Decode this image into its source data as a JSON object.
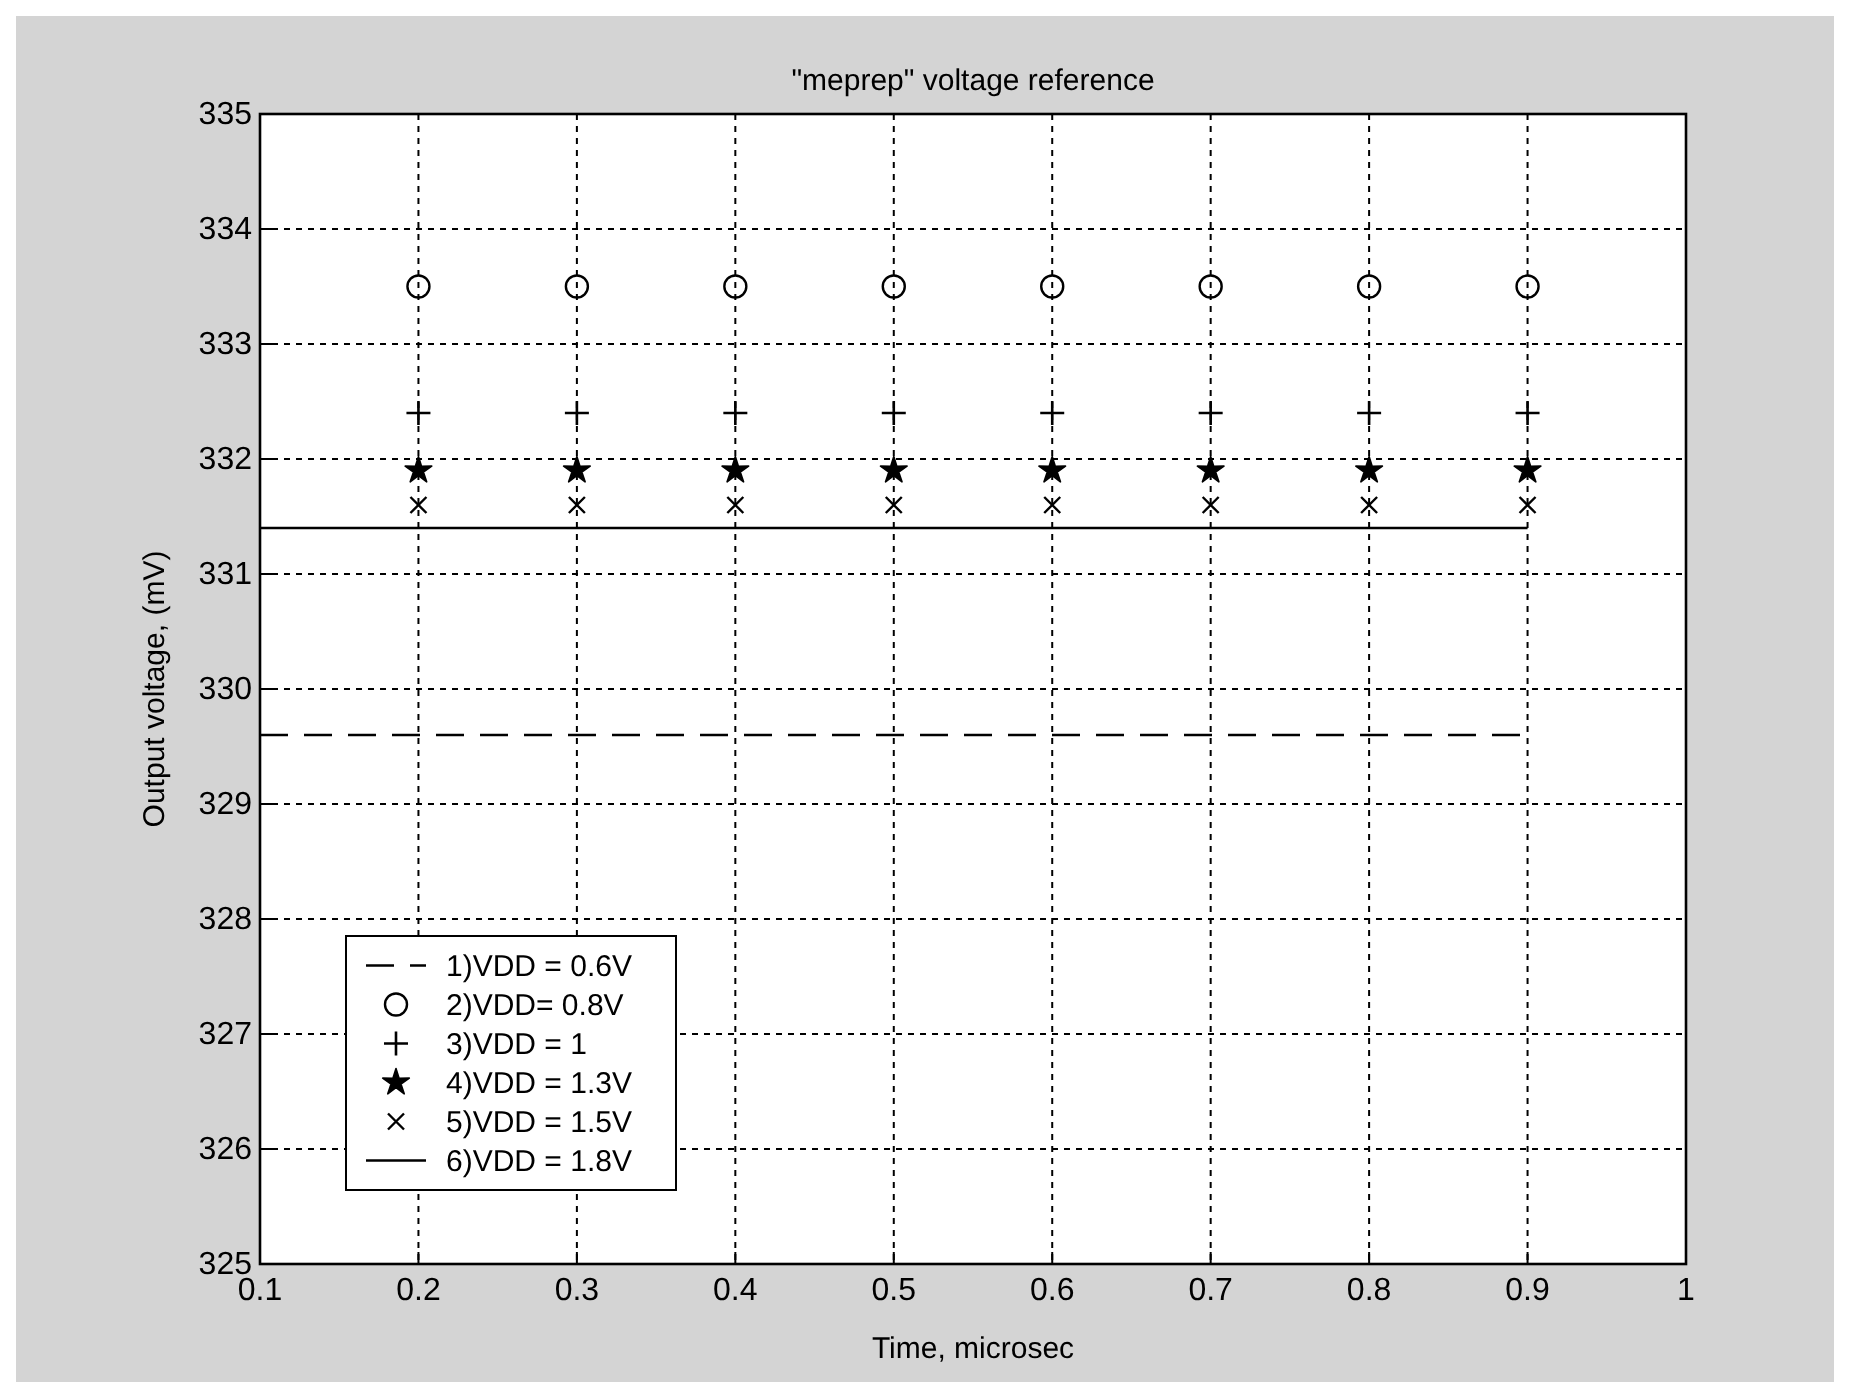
{
  "chart_data": {
    "type": "scatter",
    "title": "\"meprep\" voltage reference",
    "xlabel": "Time, microsec",
    "ylabel": "Output voltage, (mV)",
    "xlim": [
      0.1,
      1
    ],
    "xticks": [
      0.1,
      0.2,
      0.3,
      0.4,
      0.5,
      0.6,
      0.7,
      0.8,
      0.9,
      1
    ],
    "ylim": [
      325,
      335
    ],
    "yticks": [
      325,
      326,
      327,
      328,
      329,
      330,
      331,
      332,
      333,
      334,
      335
    ],
    "grid": true,
    "legend": "bottom left",
    "series": [
      {
        "name": "1)VDD = 0.6V",
        "type": "line",
        "color": "#000000",
        "marker": "none",
        "line_style": "dashed",
        "x": [
          0.1,
          0.9
        ],
        "values": [
          329.6,
          329.6
        ]
      },
      {
        "name": "2)VDD= 0.8V",
        "color": "#000000",
        "marker": "circle",
        "x": [
          0.2,
          0.3,
          0.4,
          0.5,
          0.6,
          0.7,
          0.8,
          0.9
        ],
        "values": [
          333.5,
          333.5,
          333.5,
          333.5,
          333.5,
          333.5,
          333.5,
          333.5
        ]
      },
      {
        "name": "3)VDD = 1",
        "color": "#000000",
        "marker": "plus",
        "x": [
          0.2,
          0.3,
          0.4,
          0.5,
          0.6,
          0.7,
          0.8,
          0.9
        ],
        "values": [
          332.4,
          332.4,
          332.4,
          332.4,
          332.4,
          332.4,
          332.4,
          332.4
        ]
      },
      {
        "name": "4)VDD = 1.3V",
        "color": "#000000",
        "marker": "star",
        "x": [
          0.2,
          0.3,
          0.4,
          0.5,
          0.6,
          0.7,
          0.8,
          0.9
        ],
        "values": [
          331.9,
          331.9,
          331.9,
          331.9,
          331.9,
          331.9,
          331.9,
          331.9
        ]
      },
      {
        "name": "5)VDD = 1.5V",
        "color": "#000000",
        "marker": "cross",
        "x": [
          0.2,
          0.3,
          0.4,
          0.5,
          0.6,
          0.7,
          0.8,
          0.9
        ],
        "values": [
          331.6,
          331.6,
          331.6,
          331.6,
          331.6,
          331.6,
          331.6,
          331.6
        ]
      },
      {
        "name": "6)VDD = 1.8V",
        "type": "line",
        "color": "#000000",
        "marker": "none",
        "line_style": "solid",
        "x": [
          0.1,
          0.9
        ],
        "values": [
          331.4,
          331.4
        ]
      }
    ]
  }
}
